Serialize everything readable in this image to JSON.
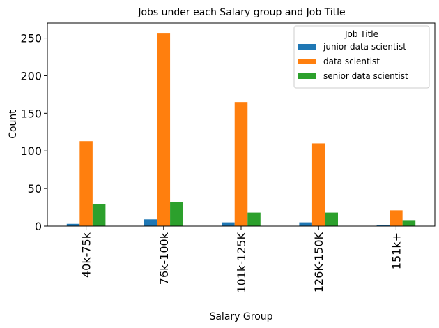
{
  "chart_data": {
    "type": "bar",
    "title": "Jobs under each Salary group and Job Title",
    "xlabel": "Salary Group",
    "ylabel": "Count",
    "ylim": [
      0,
      270
    ],
    "yticks": [
      0,
      50,
      100,
      150,
      200,
      250
    ],
    "categories": [
      "40k-75k",
      "76k-100k",
      "101k-125K",
      "126K-150K",
      "151k+"
    ],
    "legend": {
      "title": "Job Title",
      "placement": "top-right"
    },
    "grid": false,
    "series": [
      {
        "name": "junior data scientist",
        "color": "#1f77b4",
        "values": [
          3,
          9,
          5,
          5,
          1
        ]
      },
      {
        "name": "data scientist",
        "color": "#ff7f0e",
        "values": [
          113,
          256,
          165,
          110,
          21
        ]
      },
      {
        "name": "senior data scientist",
        "color": "#2ca02c",
        "values": [
          29,
          32,
          18,
          18,
          8
        ]
      }
    ]
  }
}
